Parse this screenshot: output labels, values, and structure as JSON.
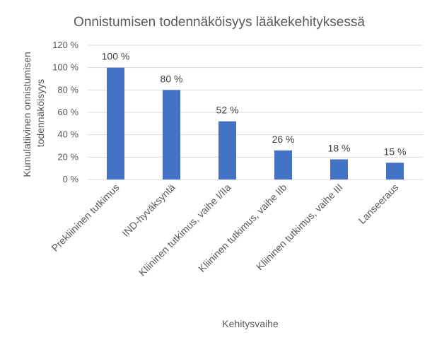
{
  "chart_data": {
    "type": "bar",
    "title": "Onnistumisen todennäköisyys lääkekehityksessä",
    "xlabel": "Kehitysvaihe",
    "ylabel": [
      "Kumulatiivinen onnistumisen",
      "todennäköisyys"
    ],
    "categories": [
      "Prekliininen tutkimus",
      "IND-hyväksyntä",
      "Kliininen tutkimus, vaihe I/IIa",
      "Kliininen tutkimus, vaihe IIb",
      "Kliininen tutkimus, vaihe III",
      "Lanseeraus"
    ],
    "values": [
      100,
      80,
      52,
      26,
      18,
      15
    ],
    "data_labels": [
      "100 %",
      "80 %",
      "52 %",
      "26 %",
      "18 %",
      "15 %"
    ],
    "yticks": [
      0,
      20,
      40,
      60,
      80,
      100,
      120
    ],
    "ytick_labels": [
      "0 %",
      "20 %",
      "40 %",
      "60 %",
      "80 %",
      "100 %",
      "120 %"
    ],
    "ylim": [
      0,
      120
    ],
    "grid": true,
    "legend": "none",
    "bar_color": "#4472c4"
  }
}
